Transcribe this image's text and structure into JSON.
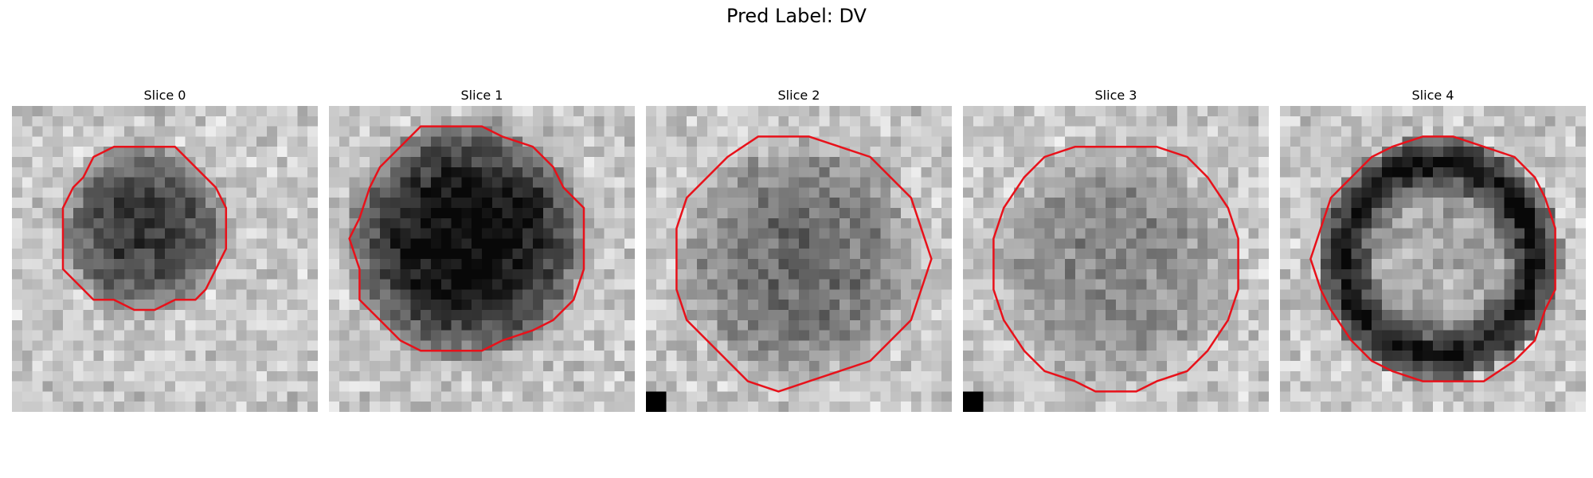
{
  "figure": {
    "title": "Pred Label: DV"
  },
  "panels": [
    {
      "id": "slice-0",
      "title": "Slice 0",
      "center": [
        0.43,
        0.4
      ],
      "radius": 0.27,
      "blob_radius": 0.3,
      "darkness": 0.55,
      "ring": false,
      "corner_marker": false,
      "contour_color": "#e8111a"
    },
    {
      "id": "slice-1",
      "title": "Slice 1",
      "center": [
        0.45,
        0.44
      ],
      "radius": 0.38,
      "blob_radius": 0.42,
      "darkness": 0.75,
      "ring": false,
      "corner_marker": false,
      "contour_color": "#e8111a"
    },
    {
      "id": "slice-2",
      "title": "Slice 2",
      "center": [
        0.5,
        0.5
      ],
      "radius": 0.41,
      "blob_radius": 0.42,
      "darkness": 0.35,
      "ring": false,
      "corner_marker": true,
      "contour_color": "#e8111a"
    },
    {
      "id": "slice-3",
      "title": "Slice 3",
      "center": [
        0.5,
        0.52
      ],
      "radius": 0.41,
      "blob_radius": 0.42,
      "darkness": 0.25,
      "ring": false,
      "corner_marker": true,
      "contour_color": "#e8111a"
    },
    {
      "id": "slice-4",
      "title": "Slice 4",
      "center": [
        0.52,
        0.5
      ],
      "radius": 0.4,
      "blob_radius": 0.4,
      "darkness": 0.7,
      "ring": true,
      "corner_marker": false,
      "contour_color": "#e8111a"
    }
  ],
  "colors": {
    "background": "#ffffff",
    "contour": "#e8111a",
    "colormap": "grayscale"
  }
}
